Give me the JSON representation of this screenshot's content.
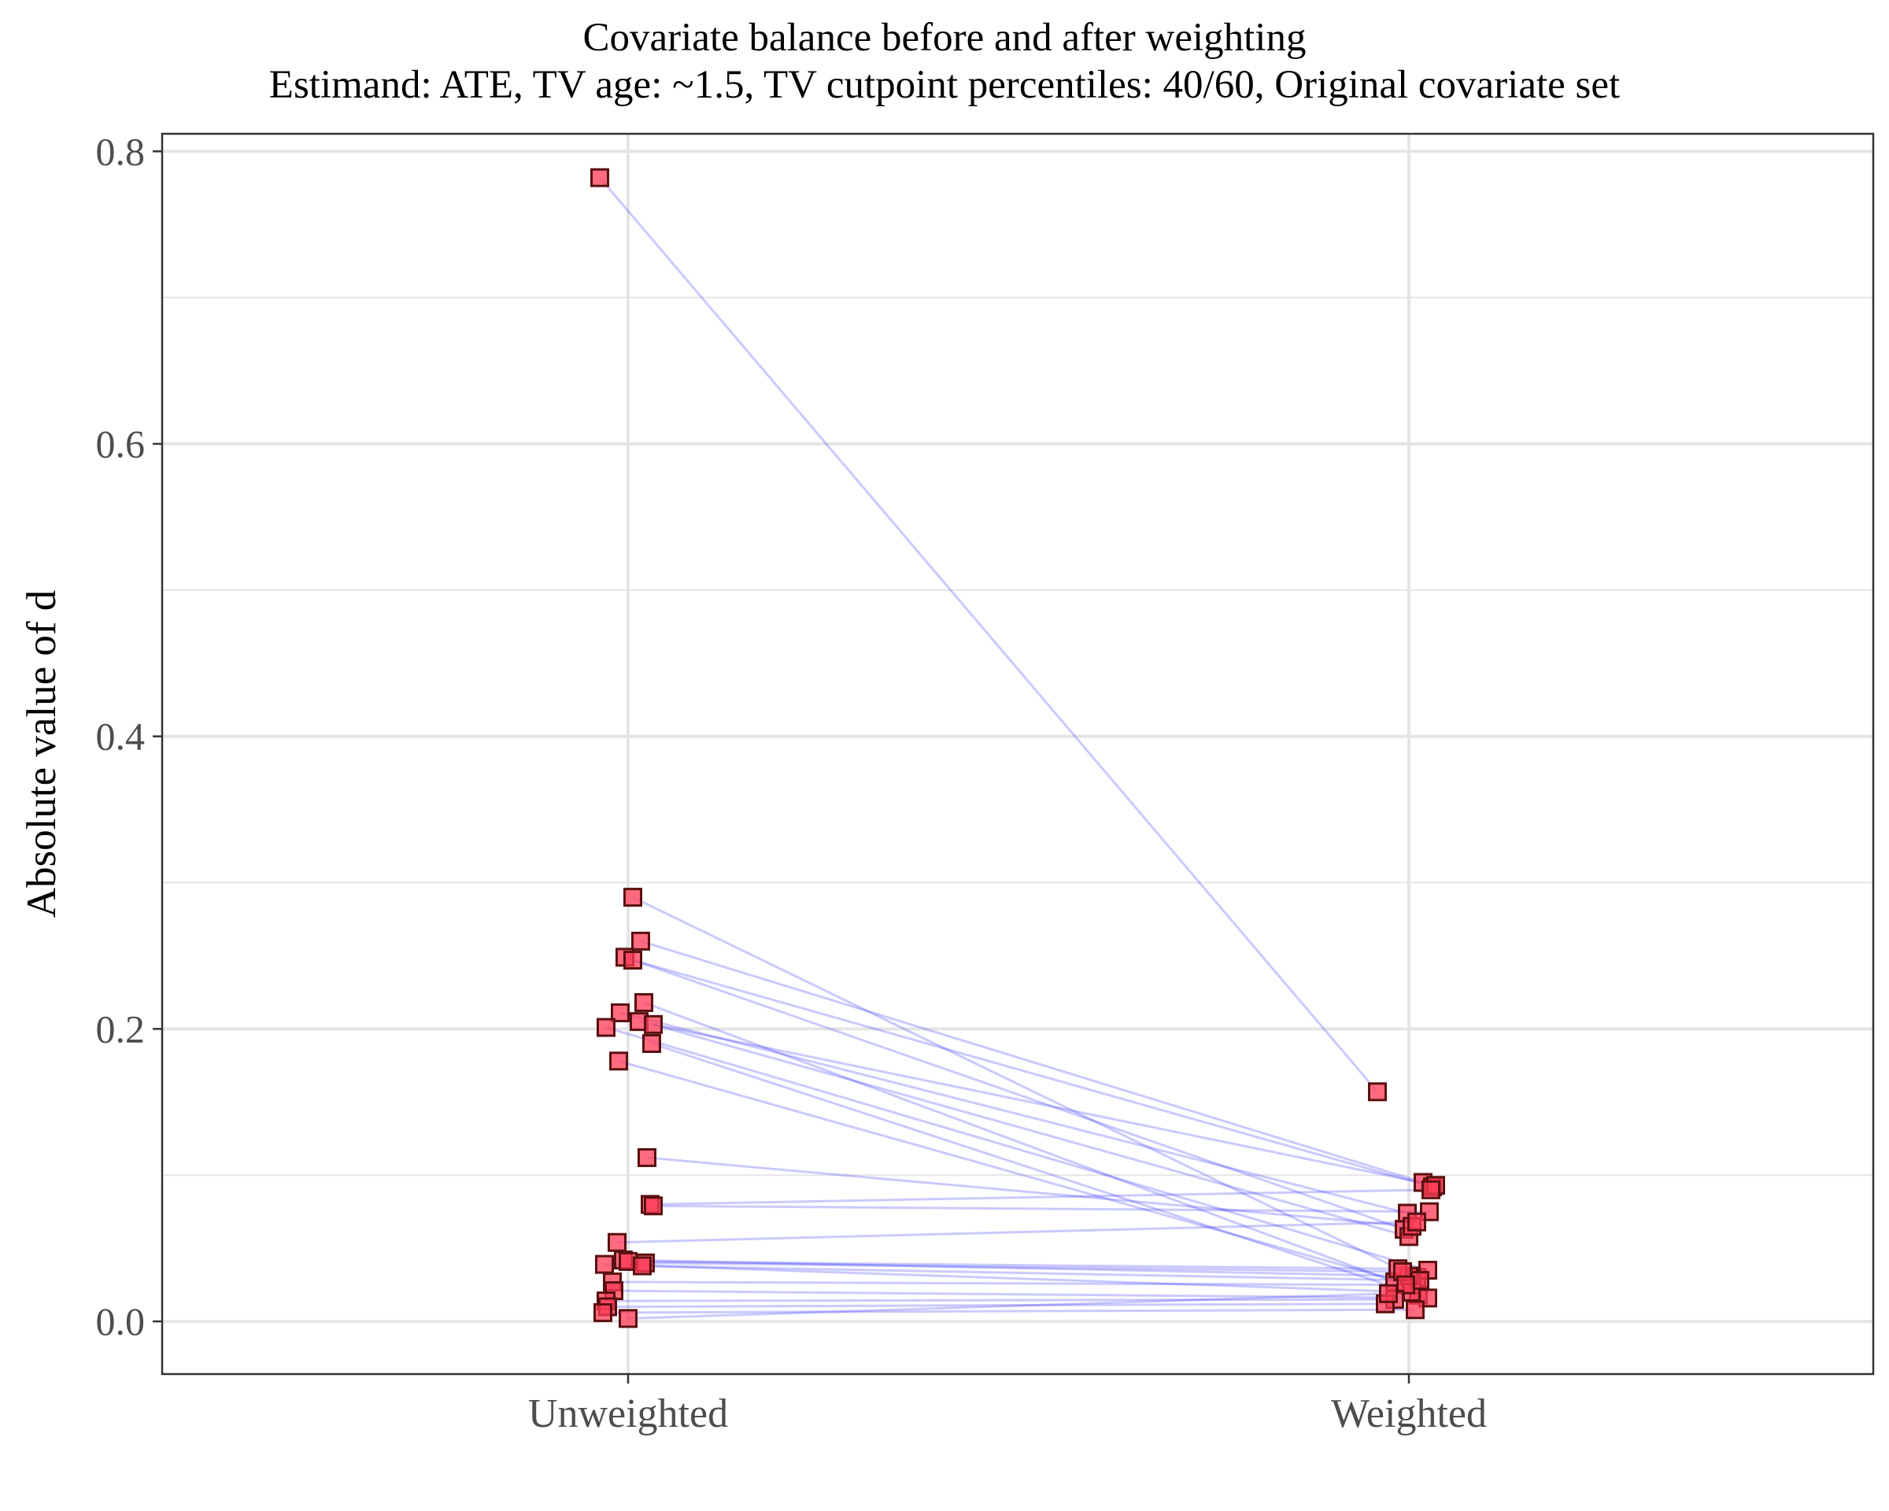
{
  "chart_data": {
    "type": "scatter",
    "title": "Covariate balance before and after weighting",
    "subtitle": "Estimand: ATE, TV age: ~1.5, TV cutpoint percentiles: 40/60, Original covariate set",
    "xlabel": "",
    "ylabel": "Absolute value of d",
    "categories": [
      "Unweighted",
      "Weighted"
    ],
    "ylim": [
      -0.036,
      0.812
    ],
    "yticks": [
      0.0,
      0.2,
      0.4,
      0.6,
      0.8
    ],
    "ytick_labels": [
      "0.0",
      "0.2",
      "0.4",
      "0.6",
      "0.8"
    ],
    "grid": true,
    "legend": "none",
    "colors": {
      "point_fill": "#ff3b55",
      "point_edge": "#5a1010",
      "line": "#2b2bff",
      "grid": "#e5e5e5",
      "panel_border": "#333333"
    },
    "series": [
      {
        "values": [
          0.782,
          0.157
        ]
      },
      {
        "values": [
          0.29,
          0.03
        ]
      },
      {
        "values": [
          0.26,
          0.095
        ]
      },
      {
        "values": [
          0.249,
          0.063
        ]
      },
      {
        "values": [
          0.247,
          0.092
        ]
      },
      {
        "values": [
          0.218,
          0.027
        ]
      },
      {
        "values": [
          0.211,
          0.074
        ]
      },
      {
        "values": [
          0.205,
          0.093
        ]
      },
      {
        "values": [
          0.203,
          0.058
        ]
      },
      {
        "values": [
          0.201,
          0.035
        ]
      },
      {
        "values": [
          0.19,
          0.018
        ]
      },
      {
        "values": [
          0.178,
          0.025
        ]
      },
      {
        "values": [
          0.112,
          0.065
        ]
      },
      {
        "values": [
          0.08,
          0.09
        ]
      },
      {
        "values": [
          0.079,
          0.075
        ]
      },
      {
        "values": [
          0.054,
          0.068
        ]
      },
      {
        "values": [
          0.042,
          0.031
        ]
      },
      {
        "values": [
          0.041,
          0.036
        ]
      },
      {
        "values": [
          0.04,
          0.034
        ]
      },
      {
        "values": [
          0.039,
          0.02
        ]
      },
      {
        "values": [
          0.038,
          0.028
        ]
      },
      {
        "values": [
          0.027,
          0.025
        ]
      },
      {
        "values": [
          0.021,
          0.016
        ]
      },
      {
        "values": [
          0.014,
          0.015
        ]
      },
      {
        "values": [
          0.01,
          0.012
        ]
      },
      {
        "values": [
          0.006,
          0.008
        ]
      },
      {
        "values": [
          0.002,
          0.019
        ]
      }
    ]
  }
}
